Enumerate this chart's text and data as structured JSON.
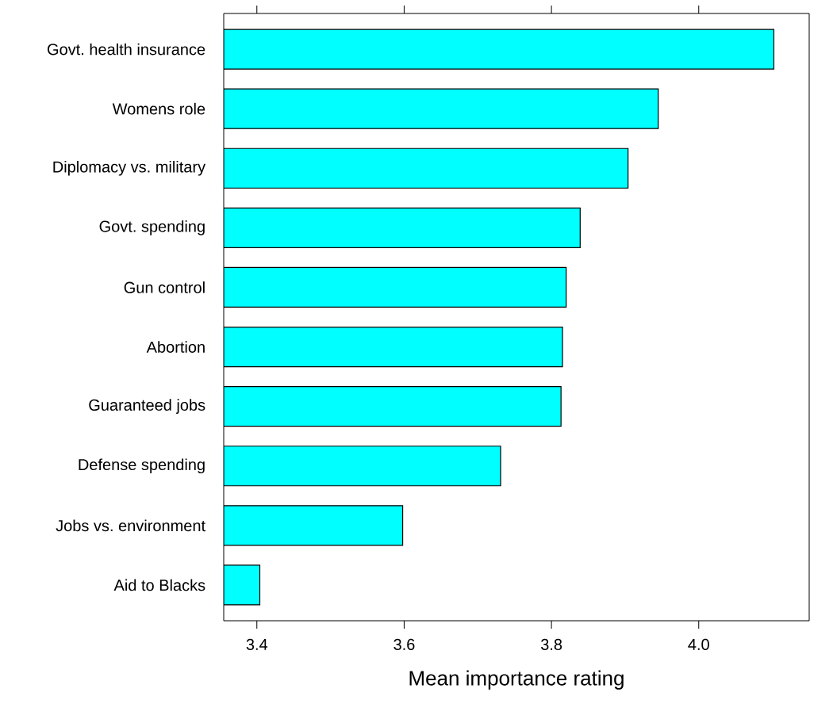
{
  "chart_data": {
    "type": "bar",
    "orientation": "horizontal",
    "categories": [
      "Govt. health insurance",
      "Womens role",
      "Diplomacy vs. military",
      "Govt. spending",
      "Gun control",
      "Abortion",
      "Guaranteed jobs",
      "Defense spending",
      "Jobs vs. environment",
      "Aid to Blacks"
    ],
    "values": [
      4.102,
      3.945,
      3.904,
      3.839,
      3.82,
      3.815,
      3.813,
      3.731,
      3.598,
      3.404
    ],
    "color": "#00ffff",
    "xlabel": "Mean importance rating",
    "xlim": [
      3.355,
      4.15
    ],
    "xticks": [
      3.4,
      3.6,
      3.8,
      {
        "value": 4,
        "label": "4.0"
      }
    ],
    "grid": false
  }
}
